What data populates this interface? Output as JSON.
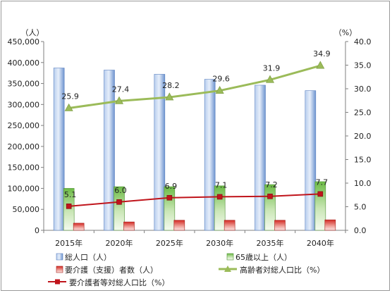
{
  "chart_data": {
    "type": "bar",
    "categories": [
      "2015年",
      "2020年",
      "2025年",
      "2030年",
      "2035年",
      "2040年"
    ],
    "y_left_unit": "（人）",
    "y_right_unit": "（%）",
    "ylim_left": [
      0,
      450000
    ],
    "ylim_right": [
      0,
      40
    ],
    "y_left_ticks": [
      "0",
      "50,000",
      "100,000",
      "150,000",
      "200,000",
      "250,000",
      "300,000",
      "350,000",
      "400,000",
      "450,000"
    ],
    "y_right_ticks": [
      "0.0",
      "5.0",
      "10.0",
      "15.0",
      "20.0",
      "25.0",
      "30.0",
      "35.0",
      "40.0"
    ],
    "grid": false,
    "legend_position": "bottom",
    "series": [
      {
        "name": "総人口（人）",
        "kind": "bar",
        "axis": "left",
        "color": "#7b9fd6",
        "values": [
          387000,
          382000,
          372000,
          360000,
          346000,
          333000
        ]
      },
      {
        "name": "65歳以上（人）",
        "kind": "bar",
        "axis": "left",
        "color": "#7fc45a",
        "values": [
          100000,
          104000,
          104000,
          106000,
          109000,
          116000
        ]
      },
      {
        "name": "要介護（支援）者数（人）",
        "kind": "bar",
        "axis": "left",
        "color": "#d9312b",
        "values": [
          17000,
          20000,
          24000,
          24000,
          24000,
          25000
        ]
      },
      {
        "name": "高齢者対総人口比（%）",
        "kind": "line",
        "axis": "right",
        "color": "#9bbb59",
        "marker": "triangle",
        "values": [
          25.9,
          27.4,
          28.2,
          29.6,
          31.9,
          34.9
        ],
        "labels": [
          "25.9",
          "27.4",
          "28.2",
          "29.6",
          "31.9",
          "34.9"
        ]
      },
      {
        "name": "要介護者等対総人口比（%）",
        "kind": "line",
        "axis": "right",
        "color": "#c0151c",
        "marker": "square",
        "values": [
          5.1,
          6.0,
          6.9,
          7.1,
          7.2,
          7.7
        ],
        "labels": [
          "5.1",
          "6.0",
          "6.9",
          "7.1",
          "7.2",
          "7.7"
        ]
      }
    ]
  }
}
